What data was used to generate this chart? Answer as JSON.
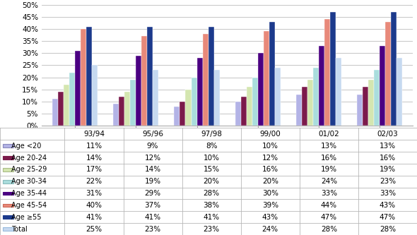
{
  "categories": [
    "93/94",
    "95/96",
    "97/98",
    "99/00",
    "01/02",
    "02/03"
  ],
  "series": [
    {
      "label": "Age <20",
      "values": [
        11,
        9,
        8,
        10,
        13,
        13
      ],
      "color": "#b3b3e6",
      "border": "#8888bb"
    },
    {
      "label": "Age 20-24",
      "values": [
        14,
        12,
        10,
        12,
        16,
        16
      ],
      "color": "#7b1a4b",
      "border": "#7b1a4b"
    },
    {
      "label": "Age 25-29",
      "values": [
        17,
        14,
        15,
        16,
        19,
        19
      ],
      "color": "#d4e6b0",
      "border": "#aabb88"
    },
    {
      "label": "Age 30-34",
      "values": [
        22,
        19,
        20,
        20,
        24,
        23
      ],
      "color": "#aadddd",
      "border": "#88bbbb"
    },
    {
      "label": "Age 35-44",
      "values": [
        31,
        29,
        28,
        30,
        33,
        33
      ],
      "color": "#4b0082",
      "border": "#4b0082"
    },
    {
      "label": "Age 45-54",
      "values": [
        40,
        37,
        38,
        39,
        44,
        43
      ],
      "color": "#e8897a",
      "border": "#cc6655"
    },
    {
      "label": "Age ≥55",
      "values": [
        41,
        41,
        41,
        43,
        47,
        47
      ],
      "color": "#1c3a8c",
      "border": "#1c3a8c"
    },
    {
      "label": "Total",
      "values": [
        25,
        23,
        23,
        24,
        28,
        28
      ],
      "color": "#c6d9f0",
      "border": "#99bbdd"
    }
  ],
  "ylim": [
    0,
    50
  ],
  "yticks": [
    0,
    5,
    10,
    15,
    20,
    25,
    30,
    35,
    40,
    45,
    50
  ],
  "ytick_labels": [
    "0%",
    "5%",
    "10%",
    "15%",
    "20%",
    "25%",
    "30%",
    "35%",
    "40%",
    "45%",
    "50%"
  ],
  "background_color": "#ffffff",
  "plot_bg_color": "#ffffff",
  "grid_color": "#bbbbbb",
  "bar_edge_color": "#ffffff",
  "table_header_row": [
    "",
    "93/94",
    "95/96",
    "97/98",
    "99/00",
    "01/02",
    "02/03"
  ],
  "chart_area_ratio": 0.535,
  "table_area_ratio": 0.465
}
